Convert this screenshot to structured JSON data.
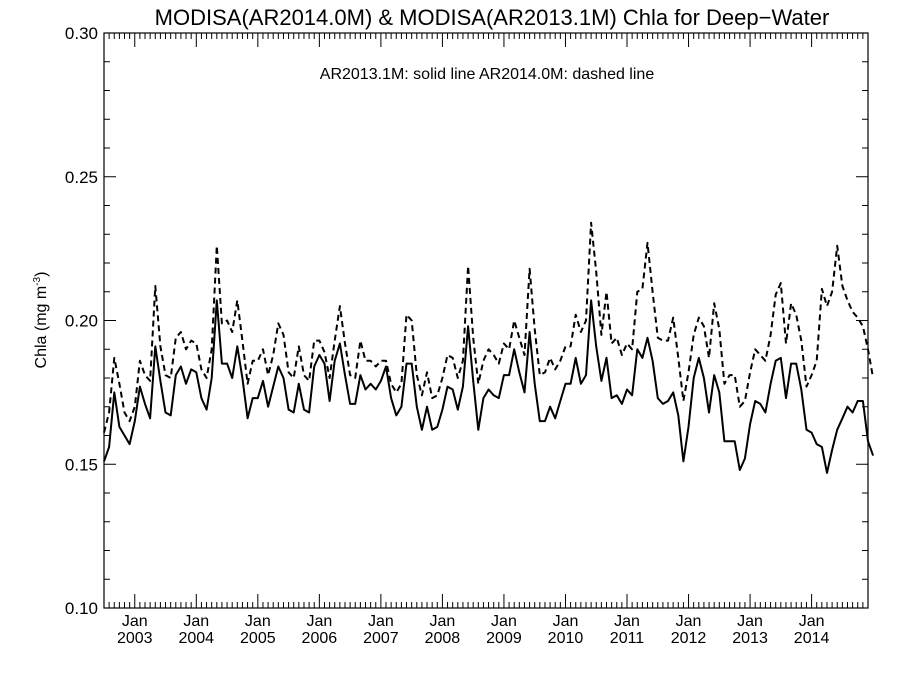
{
  "chart_data": {
    "type": "line",
    "title": "MODISA(AR2014.0M) & MODISA(AR2013.1M)  Chla for Deep−Water",
    "annotation": "AR2013.1M: solid line   AR2014.0M: dashed line",
    "ylabel": "Chla (mg m",
    "ylabel_sup": "-3",
    "ylabel_close": ")",
    "ylim": [
      0.1,
      0.3
    ],
    "xlim": [
      "2002-07",
      "2014-12"
    ],
    "yticks": [
      "0.10",
      "0.15",
      "0.20",
      "0.25",
      "0.30"
    ],
    "xticks": [
      {
        "month": "Jan",
        "year": "2003"
      },
      {
        "month": "Jan",
        "year": "2004"
      },
      {
        "month": "Jan",
        "year": "2005"
      },
      {
        "month": "Jan",
        "year": "2006"
      },
      {
        "month": "Jan",
        "year": "2007"
      },
      {
        "month": "Jan",
        "year": "2008"
      },
      {
        "month": "Jan",
        "year": "2009"
      },
      {
        "month": "Jan",
        "year": "2010"
      },
      {
        "month": "Jan",
        "year": "2011"
      },
      {
        "month": "Jan",
        "year": "2012"
      },
      {
        "month": "Jan",
        "year": "2013"
      },
      {
        "month": "Jan",
        "year": "2014"
      }
    ],
    "x_start": "2002-07",
    "series": [
      {
        "name": "AR2013.1M",
        "style": "solid",
        "values": [
          0.151,
          0.156,
          0.175,
          0.163,
          0.16,
          0.157,
          0.165,
          0.177,
          0.171,
          0.166,
          0.191,
          0.179,
          0.168,
          0.167,
          0.181,
          0.184,
          0.178,
          0.183,
          0.182,
          0.173,
          0.169,
          0.18,
          0.207,
          0.185,
          0.185,
          0.18,
          0.191,
          0.18,
          0.166,
          0.173,
          0.173,
          0.179,
          0.17,
          0.177,
          0.184,
          0.18,
          0.169,
          0.168,
          0.178,
          0.169,
          0.168,
          0.184,
          0.188,
          0.185,
          0.172,
          0.186,
          0.192,
          0.181,
          0.171,
          0.171,
          0.181,
          0.176,
          0.178,
          0.176,
          0.179,
          0.184,
          0.173,
          0.167,
          0.17,
          0.185,
          0.185,
          0.17,
          0.162,
          0.17,
          0.162,
          0.163,
          0.169,
          0.177,
          0.176,
          0.169,
          0.177,
          0.198,
          0.179,
          0.162,
          0.173,
          0.176,
          0.174,
          0.173,
          0.181,
          0.181,
          0.19,
          0.182,
          0.175,
          0.196,
          0.178,
          0.165,
          0.165,
          0.17,
          0.166,
          0.172,
          0.178,
          0.178,
          0.187,
          0.178,
          0.181,
          0.207,
          0.191,
          0.179,
          0.187,
          0.173,
          0.174,
          0.171,
          0.176,
          0.174,
          0.19,
          0.187,
          0.194,
          0.186,
          0.173,
          0.171,
          0.172,
          0.175,
          0.167,
          0.151,
          0.163,
          0.18,
          0.187,
          0.18,
          0.168,
          0.181,
          0.175,
          0.158,
          0.158,
          0.158,
          0.148,
          0.152,
          0.164,
          0.172,
          0.171,
          0.168,
          0.178,
          0.186,
          0.187,
          0.173,
          0.185,
          0.185,
          0.176,
          0.162,
          0.161,
          0.157,
          0.156,
          0.147,
          0.155,
          0.162,
          0.166,
          0.17,
          0.168,
          0.172,
          0.172,
          0.158,
          0.153
        ]
      },
      {
        "name": "AR2014.0M",
        "style": "dashed",
        "values": [
          0.161,
          0.168,
          0.187,
          0.178,
          0.168,
          0.165,
          0.17,
          0.186,
          0.181,
          0.179,
          0.212,
          0.191,
          0.181,
          0.18,
          0.194,
          0.196,
          0.19,
          0.193,
          0.192,
          0.183,
          0.18,
          0.19,
          0.226,
          0.199,
          0.2,
          0.196,
          0.207,
          0.193,
          0.178,
          0.186,
          0.186,
          0.19,
          0.181,
          0.188,
          0.199,
          0.195,
          0.182,
          0.18,
          0.191,
          0.181,
          0.179,
          0.193,
          0.193,
          0.189,
          0.18,
          0.193,
          0.205,
          0.192,
          0.181,
          0.18,
          0.193,
          0.186,
          0.186,
          0.184,
          0.186,
          0.186,
          0.178,
          0.175,
          0.178,
          0.202,
          0.2,
          0.181,
          0.174,
          0.182,
          0.173,
          0.174,
          0.18,
          0.188,
          0.187,
          0.18,
          0.186,
          0.219,
          0.194,
          0.178,
          0.186,
          0.19,
          0.188,
          0.185,
          0.192,
          0.19,
          0.2,
          0.194,
          0.188,
          0.218,
          0.197,
          0.181,
          0.182,
          0.187,
          0.183,
          0.186,
          0.191,
          0.191,
          0.202,
          0.196,
          0.2,
          0.234,
          0.217,
          0.195,
          0.21,
          0.192,
          0.194,
          0.188,
          0.192,
          0.19,
          0.21,
          0.211,
          0.227,
          0.21,
          0.194,
          0.193,
          0.193,
          0.201,
          0.187,
          0.172,
          0.182,
          0.195,
          0.201,
          0.198,
          0.187,
          0.206,
          0.197,
          0.178,
          0.181,
          0.181,
          0.17,
          0.172,
          0.182,
          0.19,
          0.188,
          0.186,
          0.195,
          0.209,
          0.213,
          0.192,
          0.206,
          0.202,
          0.193,
          0.177,
          0.181,
          0.186,
          0.211,
          0.205,
          0.21,
          0.226,
          0.212,
          0.207,
          0.203,
          0.201,
          0.198,
          0.19,
          0.18
        ]
      }
    ],
    "grid": false,
    "legend": "none"
  }
}
